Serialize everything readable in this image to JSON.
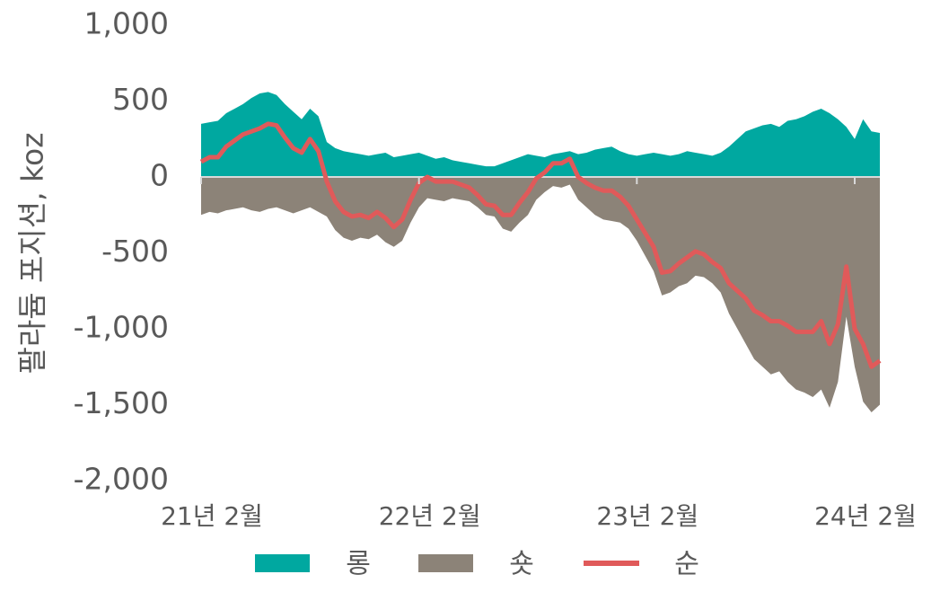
{
  "chart_data": {
    "type": "area_line",
    "y_label": "팔라듐 포지션, koz",
    "categories": [
      "21년 2월",
      null,
      null,
      null,
      null,
      null,
      null,
      null,
      null,
      null,
      null,
      null,
      null,
      null,
      null,
      null,
      null,
      null,
      null,
      null,
      null,
      null,
      null,
      null,
      null,
      null,
      "22년 2월",
      null,
      null,
      null,
      null,
      null,
      null,
      null,
      null,
      null,
      null,
      null,
      null,
      null,
      null,
      null,
      null,
      null,
      null,
      null,
      null,
      null,
      null,
      null,
      null,
      null,
      "23년 2월",
      null,
      null,
      null,
      null,
      null,
      null,
      null,
      null,
      null,
      null,
      null,
      null,
      null,
      null,
      null,
      null,
      null,
      null,
      null,
      null,
      null,
      null,
      null,
      null,
      null,
      "24년 2월",
      null,
      null,
      null
    ],
    "series": [
      {
        "name": "롱",
        "kind": "area",
        "color": "#00a8a0",
        "values": [
          350,
          360,
          370,
          420,
          450,
          480,
          520,
          550,
          560,
          540,
          480,
          430,
          380,
          450,
          400,
          230,
          190,
          170,
          160,
          150,
          140,
          150,
          160,
          130,
          140,
          150,
          160,
          140,
          120,
          130,
          110,
          100,
          90,
          80,
          70,
          70,
          90,
          110,
          130,
          150,
          140,
          130,
          150,
          160,
          170,
          150,
          160,
          180,
          190,
          200,
          170,
          150,
          140,
          150,
          160,
          150,
          140,
          150,
          170,
          160,
          150,
          140,
          160,
          200,
          250,
          300,
          320,
          340,
          350,
          330,
          370,
          380,
          400,
          430,
          450,
          420,
          380,
          330,
          250,
          380,
          300,
          290
        ]
      },
      {
        "name": "숏",
        "kind": "area",
        "color": "#8c8378",
        "values": [
          -250,
          -230,
          -240,
          -220,
          -210,
          -200,
          -220,
          -230,
          -210,
          -200,
          -220,
          -240,
          -220,
          -200,
          -230,
          -260,
          -350,
          -400,
          -420,
          -400,
          -410,
          -380,
          -430,
          -460,
          -420,
          -300,
          -200,
          -140,
          -150,
          -160,
          -140,
          -150,
          -160,
          -200,
          -250,
          -260,
          -340,
          -360,
          -300,
          -250,
          -150,
          -100,
          -60,
          -70,
          -50,
          -150,
          -200,
          -250,
          -280,
          -290,
          -300,
          -340,
          -420,
          -520,
          -620,
          -780,
          -760,
          -720,
          -700,
          -650,
          -660,
          -700,
          -760,
          -900,
          -1000,
          -1100,
          -1200,
          -1250,
          -1300,
          -1280,
          -1350,
          -1400,
          -1420,
          -1450,
          -1400,
          -1520,
          -1350,
          -920,
          -1250,
          -1480,
          -1550,
          -1500
        ]
      },
      {
        "name": "순",
        "kind": "line",
        "color": "#e05a5a",
        "values": [
          100,
          130,
          130,
          200,
          240,
          280,
          300,
          320,
          350,
          340,
          260,
          190,
          160,
          250,
          170,
          -30,
          -160,
          -230,
          -260,
          -250,
          -270,
          -230,
          -270,
          -330,
          -280,
          -150,
          -40,
          0,
          -30,
          -30,
          -30,
          -50,
          -70,
          -120,
          -180,
          -190,
          -250,
          -250,
          -170,
          -100,
          -10,
          30,
          90,
          90,
          120,
          0,
          -40,
          -70,
          -90,
          -90,
          -130,
          -190,
          -280,
          -370,
          -460,
          -630,
          -620,
          -570,
          -530,
          -490,
          -510,
          -560,
          -600,
          -700,
          -750,
          -800,
          -880,
          -910,
          -950,
          -950,
          -980,
          -1020,
          -1020,
          -1020,
          -950,
          -1100,
          -970,
          -590,
          -1000,
          -1100,
          -1250,
          -1210
        ]
      }
    ],
    "ylim": [
      -2000,
      1000
    ],
    "yticks": [
      {
        "value": -2000,
        "label": "-2,000"
      },
      {
        "value": -1500,
        "label": "-1,500"
      },
      {
        "value": -1000,
        "label": "-1,000"
      },
      -500,
      0,
      500,
      {
        "value": 1000,
        "label": "1,000"
      }
    ],
    "grid": false,
    "legend": "bottom"
  }
}
